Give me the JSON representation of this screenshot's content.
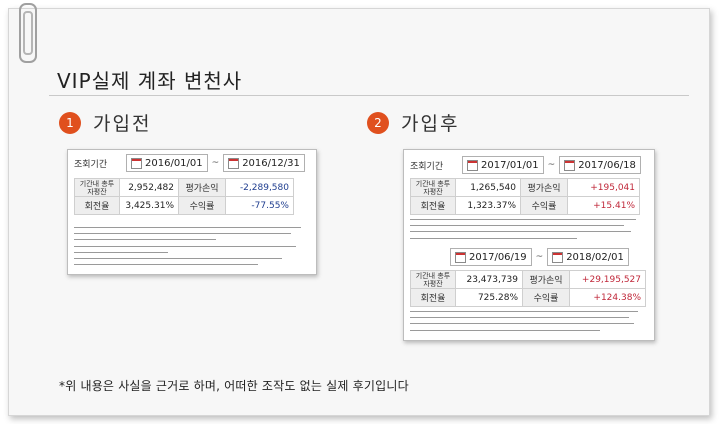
{
  "title": "VIP실제 계좌 변천사",
  "before": {
    "number": "1",
    "title": "가입전",
    "query_label": "조회기간",
    "date_start": "2016/01/01",
    "date_end": "2016/12/31",
    "total_label": "기간내 총투자평잔",
    "total_value": "2,952,482",
    "profit_label": "평가손익",
    "profit_value": "-2,289,580",
    "turnover_label": "회전율",
    "turnover_value": "3,425.31%",
    "yield_label": "수익률",
    "yield_value": "-77.55%"
  },
  "after": {
    "number": "2",
    "title": "가입후",
    "period1": {
      "query_label": "조회기간",
      "date_start": "2017/01/01",
      "date_end": "2017/06/18",
      "total_label": "기간내 총투자평잔",
      "total_value": "1,265,540",
      "profit_label": "평가손익",
      "profit_value": "+195,041",
      "turnover_label": "회전율",
      "turnover_value": "1,323.37%",
      "yield_label": "수익률",
      "yield_value": "+15.41%"
    },
    "period2": {
      "date_start": "2017/06/19",
      "date_end": "2018/02/01",
      "total_label": "기간내 총투자평잔",
      "total_value": "23,473,739",
      "profit_label": "평가손익",
      "profit_value": "+29,195,527",
      "turnover_label": "회전율",
      "turnover_value": "725.28%",
      "yield_label": "수익률",
      "yield_value": "+124.38%"
    }
  },
  "footer": "*위 내용은 사실을 근거로 하며, 어떠한 조작도 없는 실제 후기입니다"
}
